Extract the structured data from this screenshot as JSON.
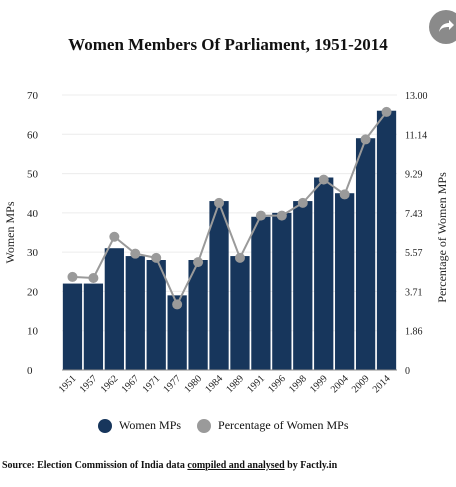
{
  "chart_data": {
    "type": "bar+line",
    "title": "Women Members Of Parliament, 1951-2014",
    "categories": [
      "1951",
      "1957",
      "1962",
      "1967",
      "1971",
      "1977",
      "1980",
      "1984",
      "1989",
      "1991",
      "1996",
      "1998",
      "1999",
      "2004",
      "2009",
      "2014"
    ],
    "series": [
      {
        "name": "Women MPs",
        "type": "bar",
        "axis": "left",
        "color": "#17365c",
        "values": [
          22,
          22,
          31,
          29,
          28,
          19,
          28,
          43,
          29,
          39,
          40,
          43,
          49,
          45,
          59,
          66
        ]
      },
      {
        "name": "Percentage of Women MPs",
        "type": "line",
        "axis": "right",
        "color": "#9a9a9a",
        "values": [
          4.4,
          4.35,
          6.3,
          5.5,
          5.3,
          3.1,
          5.1,
          7.9,
          5.3,
          7.3,
          7.3,
          7.9,
          9.0,
          8.3,
          10.9,
          12.2
        ]
      }
    ],
    "ylabel": "Women MPs",
    "ylim": [
      0,
      70
    ],
    "yticks": [
      "0",
      "10",
      "20",
      "30",
      "40",
      "50",
      "60",
      "70"
    ],
    "y2label": "Percentage of Women MPs",
    "y2lim": [
      0,
      13.0
    ],
    "y2ticks": [
      "0",
      "1.86",
      "3.71",
      "5.57",
      "7.43",
      "9.29",
      "11.14",
      "13.00"
    ],
    "legend_position": "bottom"
  },
  "source": {
    "prefix": "Source: Election Commission of India data ",
    "link": "compiled and analysed",
    "suffix": " by Factly.in"
  }
}
